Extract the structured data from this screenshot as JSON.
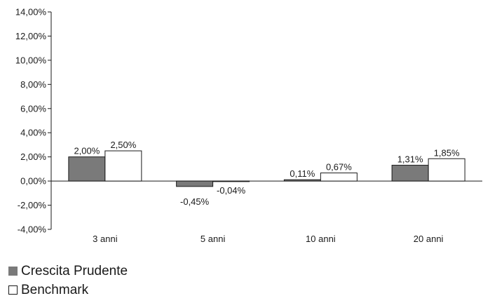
{
  "chart_data": {
    "type": "bar",
    "categories": [
      "3 anni",
      "5 anni",
      "10 anni",
      "20 anni"
    ],
    "series": [
      {
        "name": "Crescita Prudente",
        "color": "#7a7a7a",
        "values": [
          2.0,
          -0.45,
          0.11,
          1.31
        ],
        "labels": [
          "2,00%",
          "-0,45%",
          "0,11%",
          "1,31%"
        ]
      },
      {
        "name": "Benchmark",
        "color": "#ffffff",
        "values": [
          2.5,
          -0.04,
          0.67,
          1.85
        ],
        "labels": [
          "2,50%",
          "-0,04%",
          "0,67%",
          "1,85%"
        ]
      }
    ],
    "yticks": [
      14,
      12,
      10,
      8,
      6,
      4,
      2,
      0,
      -2,
      -4
    ],
    "ytick_labels": [
      "14,00%",
      "12,00%",
      "10,00%",
      "8,00%",
      "6,00%",
      "4,00%",
      "2,00%",
      "0,00%",
      "-2,00%",
      "-4,00%"
    ],
    "ylim": [
      -4,
      14
    ],
    "grid": false,
    "legend_position": "bottom-left"
  }
}
